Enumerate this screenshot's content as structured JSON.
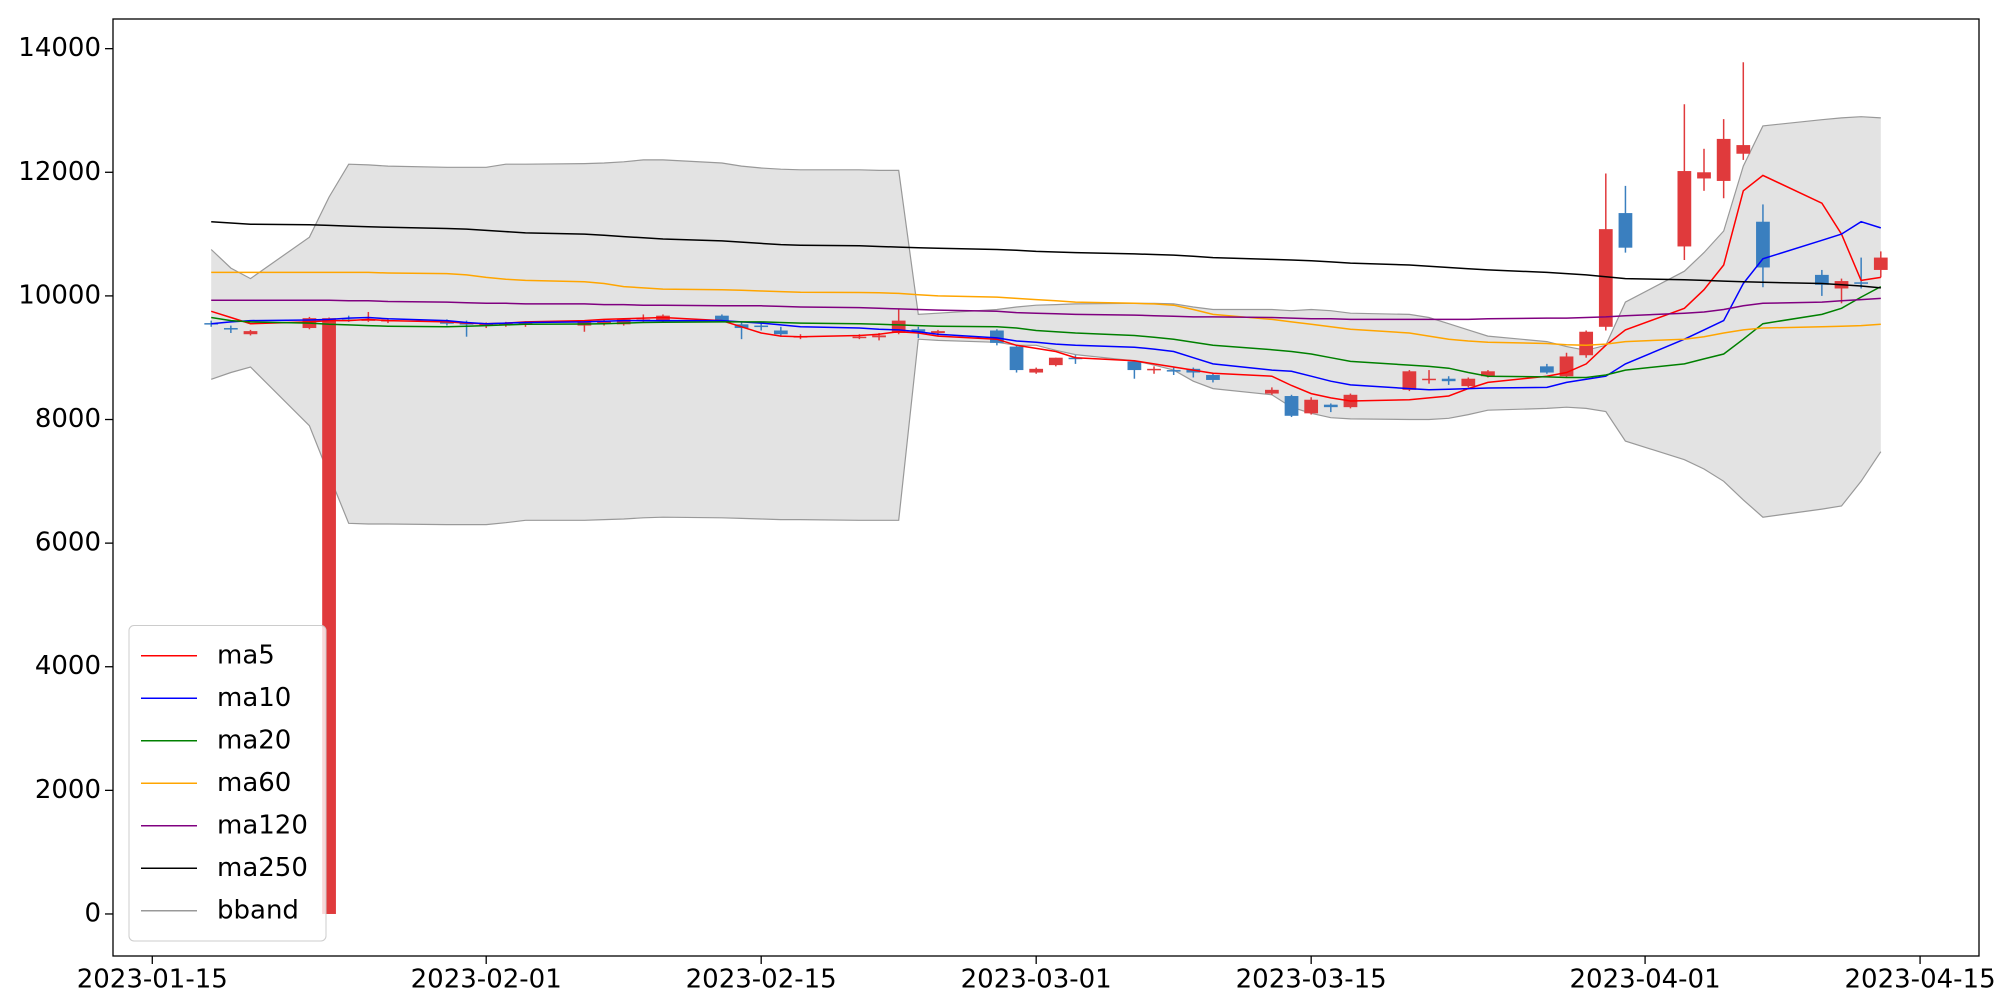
{
  "chart_data": {
    "type": "candlestick",
    "x": [
      "2023-01-18",
      "2023-01-19",
      "2023-01-20",
      "2023-01-23",
      "2023-01-24",
      "2023-01-25",
      "2023-01-26",
      "2023-01-27",
      "2023-01-30",
      "2023-01-31",
      "2023-02-01",
      "2023-02-02",
      "2023-02-03",
      "2023-02-06",
      "2023-02-07",
      "2023-02-08",
      "2023-02-09",
      "2023-02-10",
      "2023-02-13",
      "2023-02-14",
      "2023-02-15",
      "2023-02-16",
      "2023-02-17",
      "2023-02-20",
      "2023-02-21",
      "2023-02-22",
      "2023-02-23",
      "2023-02-24",
      "2023-02-27",
      "2023-02-28",
      "2023-03-01",
      "2023-03-02",
      "2023-03-03",
      "2023-03-06",
      "2023-03-07",
      "2023-03-08",
      "2023-03-09",
      "2023-03-10",
      "2023-03-13",
      "2023-03-14",
      "2023-03-15",
      "2023-03-16",
      "2023-03-17",
      "2023-03-20",
      "2023-03-21",
      "2023-03-22",
      "2023-03-23",
      "2023-03-24",
      "2023-03-27",
      "2023-03-28",
      "2023-03-29",
      "2023-03-30",
      "2023-03-31",
      "2023-04-03",
      "2023-04-04",
      "2023-04-05",
      "2023-04-06",
      "2023-04-07",
      "2023-04-10",
      "2023-04-11",
      "2023-04-12",
      "2023-04-13"
    ],
    "open": [
      9560,
      9480,
      9380,
      9480,
      0,
      9620,
      9600,
      9600,
      9580,
      9560,
      9530,
      9550,
      9540,
      9520,
      9560,
      9540,
      9600,
      9600,
      9680,
      9540,
      9520,
      9440,
      9340,
      9320,
      9330,
      9400,
      9460,
      9400,
      9440,
      9180,
      8760,
      8880,
      9000,
      8940,
      8800,
      8800,
      8820,
      8720,
      8420,
      8380,
      8100,
      8240,
      8200,
      8480,
      8640,
      8660,
      8540,
      8700,
      8860,
      8700,
      9040,
      9500,
      11340,
      10800,
      11900,
      11860,
      12300,
      11200,
      10340,
      10120,
      10220,
      10420
    ],
    "high": [
      9600,
      9520,
      9450,
      9660,
      9650,
      9680,
      9740,
      9640,
      9620,
      9600,
      9570,
      9580,
      9590,
      9600,
      9610,
      9640,
      9700,
      9700,
      9700,
      9580,
      9560,
      9500,
      9380,
      9380,
      9400,
      9780,
      9500,
      9450,
      9460,
      9200,
      8840,
      9000,
      9040,
      8960,
      8860,
      8840,
      8840,
      8740,
      8520,
      8400,
      8360,
      8260,
      8420,
      8800,
      8800,
      8700,
      8680,
      8800,
      8900,
      9080,
      9440,
      11980,
      11780,
      13100,
      12380,
      12860,
      13780,
      11480,
      10420,
      10280,
      10620,
      10720
    ],
    "low": [
      9500,
      9400,
      9360,
      9460,
      0,
      9580,
      9580,
      9560,
      9520,
      9340,
      9480,
      9500,
      9500,
      9420,
      9520,
      9520,
      9580,
      9580,
      9580,
      9300,
      9440,
      9340,
      9300,
      9300,
      9280,
      9380,
      9320,
      9360,
      9200,
      8760,
      8740,
      8860,
      8900,
      8660,
      8740,
      8720,
      8680,
      8600,
      8400,
      8040,
      8080,
      8120,
      8180,
      8460,
      8580,
      8560,
      8520,
      8680,
      8740,
      8680,
      9000,
      9440,
      10700,
      10580,
      11700,
      11580,
      12200,
      10140,
      10000,
      9880,
      10120,
      10300
    ],
    "close": [
      9540,
      9460,
      9430,
      9640,
      9640,
      9600,
      9620,
      9610,
      9550,
      9540,
      9550,
      9560,
      9560,
      9570,
      9590,
      9620,
      9620,
      9680,
      9600,
      9480,
      9500,
      9380,
      9350,
      9340,
      9360,
      9600,
      9420,
      9430,
      9240,
      8800,
      8820,
      9000,
      8980,
      8800,
      8820,
      8790,
      8760,
      8640,
      8480,
      8060,
      8320,
      8200,
      8400,
      8780,
      8660,
      8620,
      8660,
      8780,
      8760,
      9020,
      9420,
      11080,
      10780,
      12020,
      12000,
      12540,
      12440,
      10460,
      10180,
      10240,
      10200,
      10620
    ],
    "up_color": "#e03a3c",
    "down_color": "#3a7fbf",
    "series": [
      {
        "name": "ma5",
        "color": "red",
        "values": [
          9750,
          9650,
          9550,
          9580,
          9600,
          9600,
          9620,
          9600,
          9580,
          9560,
          9550,
          9560,
          9580,
          9600,
          9620,
          9630,
          9640,
          9650,
          9600,
          9500,
          9400,
          9350,
          9340,
          9360,
          9380,
          9420,
          9400,
          9350,
          9300,
          9200,
          9150,
          9100,
          9000,
          8950,
          8900,
          8850,
          8800,
          8750,
          8700,
          8550,
          8420,
          8350,
          8300,
          8320,
          8350,
          8380,
          8500,
          8600,
          8700,
          8760,
          8900,
          9200,
          9450,
          9800,
          10100,
          10500,
          11700,
          11950,
          11500,
          11000,
          10250,
          10300
        ]
      },
      {
        "name": "ma10",
        "color": "blue",
        "values": [
          9550,
          9580,
          9600,
          9610,
          9620,
          9640,
          9650,
          9630,
          9600,
          9570,
          9550,
          9560,
          9570,
          9580,
          9590,
          9600,
          9600,
          9600,
          9600,
          9580,
          9560,
          9530,
          9500,
          9480,
          9460,
          9450,
          9420,
          9380,
          9320,
          9270,
          9250,
          9220,
          9200,
          9170,
          9140,
          9100,
          9000,
          8900,
          8800,
          8780,
          8700,
          8620,
          8560,
          8500,
          8480,
          8490,
          8500,
          8510,
          8520,
          8600,
          8650,
          8700,
          8900,
          9300,
          9450,
          9600,
          10200,
          10600,
          10900,
          11000,
          11200,
          11100
        ]
      },
      {
        "name": "ma20",
        "color": "green",
        "values": [
          9650,
          9600,
          9580,
          9560,
          9540,
          9530,
          9520,
          9510,
          9500,
          9510,
          9520,
          9530,
          9540,
          9545,
          9550,
          9560,
          9570,
          9575,
          9580,
          9580,
          9580,
          9570,
          9560,
          9550,
          9540,
          9530,
          9520,
          9510,
          9500,
          9480,
          9440,
          9420,
          9400,
          9360,
          9330,
          9300,
          9250,
          9200,
          9130,
          9100,
          9060,
          9000,
          8940,
          8880,
          8860,
          8830,
          8760,
          8700,
          8690,
          8680,
          8680,
          8720,
          8800,
          8900,
          8980,
          9060,
          9300,
          9550,
          9700,
          9800,
          9980,
          10150
        ]
      },
      {
        "name": "ma60",
        "color": "orange",
        "values": [
          10380,
          10380,
          10380,
          10380,
          10380,
          10380,
          10380,
          10370,
          10360,
          10340,
          10300,
          10270,
          10250,
          10230,
          10200,
          10150,
          10130,
          10110,
          10100,
          10090,
          10080,
          10070,
          10060,
          10055,
          10050,
          10040,
          10020,
          10000,
          9980,
          9960,
          9940,
          9920,
          9900,
          9880,
          9870,
          9850,
          9780,
          9700,
          9620,
          9580,
          9540,
          9500,
          9460,
          9400,
          9350,
          9300,
          9270,
          9250,
          9230,
          9210,
          9200,
          9220,
          9260,
          9300,
          9340,
          9400,
          9450,
          9480,
          9500,
          9510,
          9520,
          9540
        ]
      },
      {
        "name": "ma120",
        "color": "purple",
        "values": [
          9930,
          9930,
          9930,
          9930,
          9930,
          9920,
          9920,
          9910,
          9900,
          9890,
          9880,
          9880,
          9870,
          9870,
          9860,
          9860,
          9850,
          9850,
          9840,
          9840,
          9840,
          9830,
          9820,
          9810,
          9800,
          9790,
          9780,
          9770,
          9750,
          9730,
          9720,
          9710,
          9700,
          9690,
          9680,
          9670,
          9660,
          9660,
          9650,
          9640,
          9630,
          9630,
          9620,
          9620,
          9620,
          9620,
          9620,
          9630,
          9640,
          9640,
          9650,
          9660,
          9680,
          9720,
          9740,
          9780,
          9840,
          9880,
          9900,
          9920,
          9940,
          9960
        ]
      },
      {
        "name": "ma250",
        "color": "black",
        "values": [
          11200,
          11180,
          11160,
          11150,
          11140,
          11130,
          11120,
          11110,
          11090,
          11080,
          11060,
          11040,
          11020,
          11000,
          10980,
          10960,
          10940,
          10920,
          10890,
          10870,
          10850,
          10830,
          10820,
          10810,
          10800,
          10790,
          10780,
          10770,
          10750,
          10740,
          10720,
          10710,
          10700,
          10680,
          10670,
          10660,
          10640,
          10620,
          10590,
          10580,
          10570,
          10550,
          10530,
          10500,
          10480,
          10460,
          10440,
          10420,
          10380,
          10360,
          10340,
          10310,
          10280,
          10260,
          10250,
          10240,
          10230,
          10220,
          10200,
          10180,
          10160,
          10130
        ]
      }
    ],
    "bband": {
      "name": "bband",
      "color": "#999999",
      "fill": "#e3e3e3",
      "upper": [
        10750,
        10450,
        10280,
        10950,
        11600,
        12130,
        12120,
        12100,
        12080,
        12080,
        12080,
        12130,
        12130,
        12140,
        12150,
        12170,
        12200,
        12200,
        12150,
        12100,
        12070,
        12050,
        12040,
        12040,
        12030,
        12030,
        9700,
        9720,
        9780,
        9820,
        9850,
        9860,
        9870,
        9880,
        9880,
        9870,
        9820,
        9780,
        9780,
        9760,
        9780,
        9760,
        9720,
        9700,
        9650,
        9550,
        9450,
        9350,
        9260,
        9180,
        9120,
        9200,
        9900,
        10400,
        10700,
        11050,
        12100,
        12750,
        12850,
        12880,
        12900,
        12880
      ],
      "lower": [
        8650,
        8760,
        8850,
        7900,
        7100,
        6320,
        6310,
        6310,
        6300,
        6300,
        6300,
        6330,
        6370,
        6370,
        6380,
        6390,
        6410,
        6420,
        6410,
        6400,
        6390,
        6380,
        6380,
        6370,
        6370,
        6370,
        9300,
        9280,
        9250,
        9200,
        9200,
        9120,
        9050,
        8950,
        8880,
        8800,
        8620,
        8500,
        8400,
        8200,
        8100,
        8030,
        8010,
        8000,
        8000,
        8020,
        8080,
        8150,
        8180,
        8200,
        8180,
        8130,
        7650,
        7350,
        7200,
        7000,
        6700,
        6420,
        6550,
        6600,
        7000,
        7480
      ]
    },
    "xlim": [
      "2023-01-13",
      "2023-04-18"
    ],
    "xticks": [
      "2023-01-15",
      "2023-02-01",
      "2023-02-15",
      "2023-03-01",
      "2023-03-15",
      "2023-04-01",
      "2023-04-15"
    ],
    "ylim": [
      -680,
      14480
    ],
    "yticks": [
      0,
      2000,
      4000,
      6000,
      8000,
      10000,
      12000,
      14000
    ],
    "legend": "lower left"
  }
}
